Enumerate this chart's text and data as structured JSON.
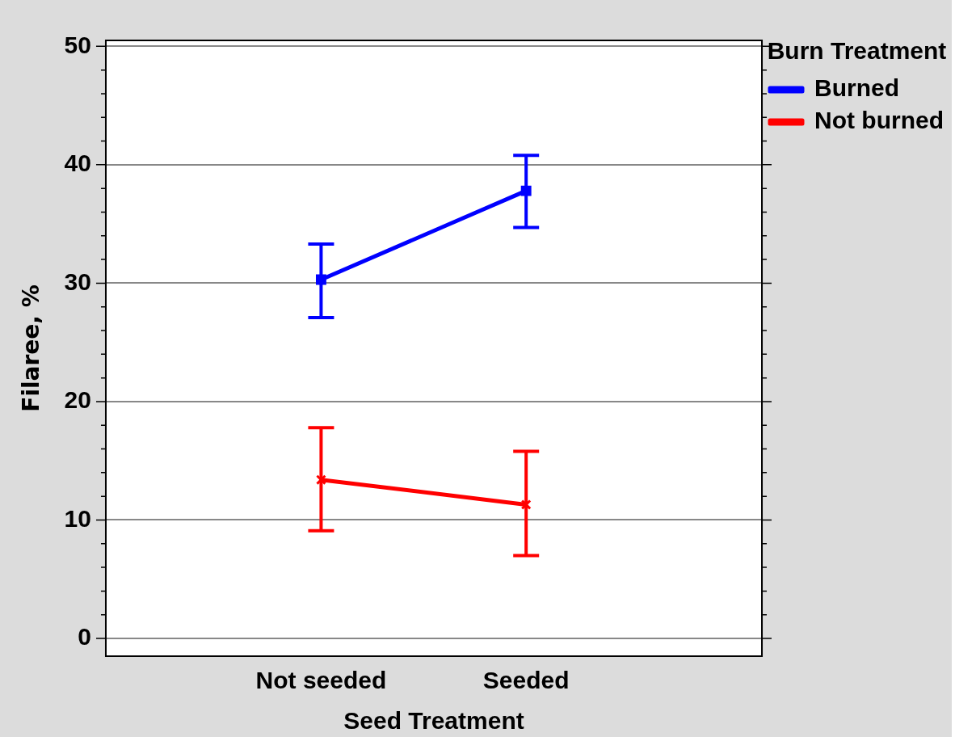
{
  "chart_data": {
    "type": "line",
    "xlabel": "Seed Treatment",
    "ylabel": "Filaree, %",
    "legend_title": "Burn Treatment",
    "categories": [
      "Not seeded",
      "Seeded"
    ],
    "series": [
      {
        "name": "Burned",
        "color": "#0000ff",
        "marker": "square",
        "values": [
          30.3,
          37.8
        ],
        "errors": [
          [
            27.1,
            33.3
          ],
          [
            34.7,
            40.8
          ]
        ]
      },
      {
        "name": "Not burned",
        "color": "#ff0000",
        "marker": "cross",
        "values": [
          13.4,
          11.3
        ],
        "errors": [
          [
            9.1,
            17.8
          ],
          [
            7.0,
            15.8
          ]
        ]
      }
    ],
    "ylim": [
      -1.5,
      50.5
    ],
    "yticks": [
      0,
      {
        "value": 2,
        "label": null
      },
      {
        "value": 4,
        "label": null
      },
      {
        "value": 6,
        "label": null
      },
      {
        "value": 8,
        "label": null
      },
      10,
      {
        "value": 12,
        "label": null
      },
      {
        "value": 14,
        "label": null
      },
      {
        "value": 16,
        "label": null
      },
      {
        "value": 18,
        "label": null
      },
      20,
      {
        "value": 22,
        "label": null
      },
      {
        "value": 24,
        "label": null
      },
      {
        "value": 26,
        "label": null
      },
      {
        "value": 28,
        "label": null
      },
      30,
      {
        "value": 32,
        "label": null
      },
      {
        "value": 34,
        "label": null
      },
      {
        "value": 36,
        "label": null
      },
      {
        "value": 38,
        "label": null
      },
      40,
      {
        "value": 42,
        "label": null
      },
      {
        "value": 44,
        "label": null
      },
      {
        "value": 46,
        "label": null
      },
      {
        "value": 48,
        "label": null
      },
      50
    ],
    "grid": "y",
    "legend": "top right"
  }
}
